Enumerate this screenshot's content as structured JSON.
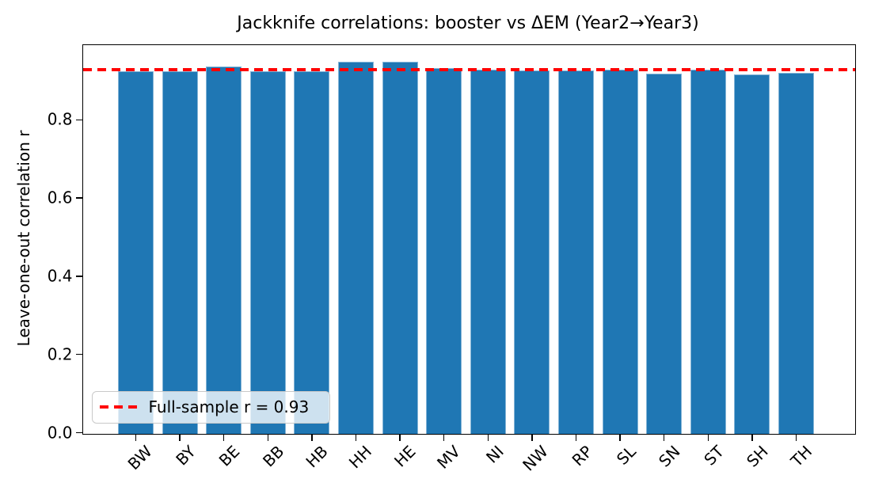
{
  "figure": {
    "title": "Jackknife correlations: booster vs ΔEM (Year2→Year3)"
  },
  "chart_data": {
    "type": "bar",
    "title": "Jackknife correlations: booster vs ΔEM (Year2→Year3)",
    "xlabel": "",
    "ylabel": "Leave-one-out correlation r",
    "categories": [
      "BW",
      "BY",
      "BE",
      "BB",
      "HB",
      "HH",
      "HE",
      "MV",
      "NI",
      "NW",
      "RP",
      "SL",
      "SN",
      "ST",
      "SH",
      "TH"
    ],
    "values": [
      0.926,
      0.926,
      0.938,
      0.926,
      0.927,
      0.951,
      0.95,
      0.935,
      0.93,
      0.929,
      0.929,
      0.93,
      0.921,
      0.931,
      0.919,
      0.922
    ],
    "yticks": [
      0.0,
      0.2,
      0.4,
      0.6,
      0.8
    ],
    "ytick_labels": [
      "0.0",
      "0.2",
      "0.4",
      "0.6",
      "0.8"
    ],
    "ylim": [
      0.0,
      0.99
    ],
    "grid": false,
    "bar_color": "#1f77b4",
    "reference_line": {
      "value": 0.93,
      "style": "dashed",
      "color": "#ff0000",
      "label": "Full-sample r = 0.93"
    },
    "legend": {
      "position": "lower left",
      "entries": [
        "Full-sample r = 0.93"
      ]
    }
  }
}
